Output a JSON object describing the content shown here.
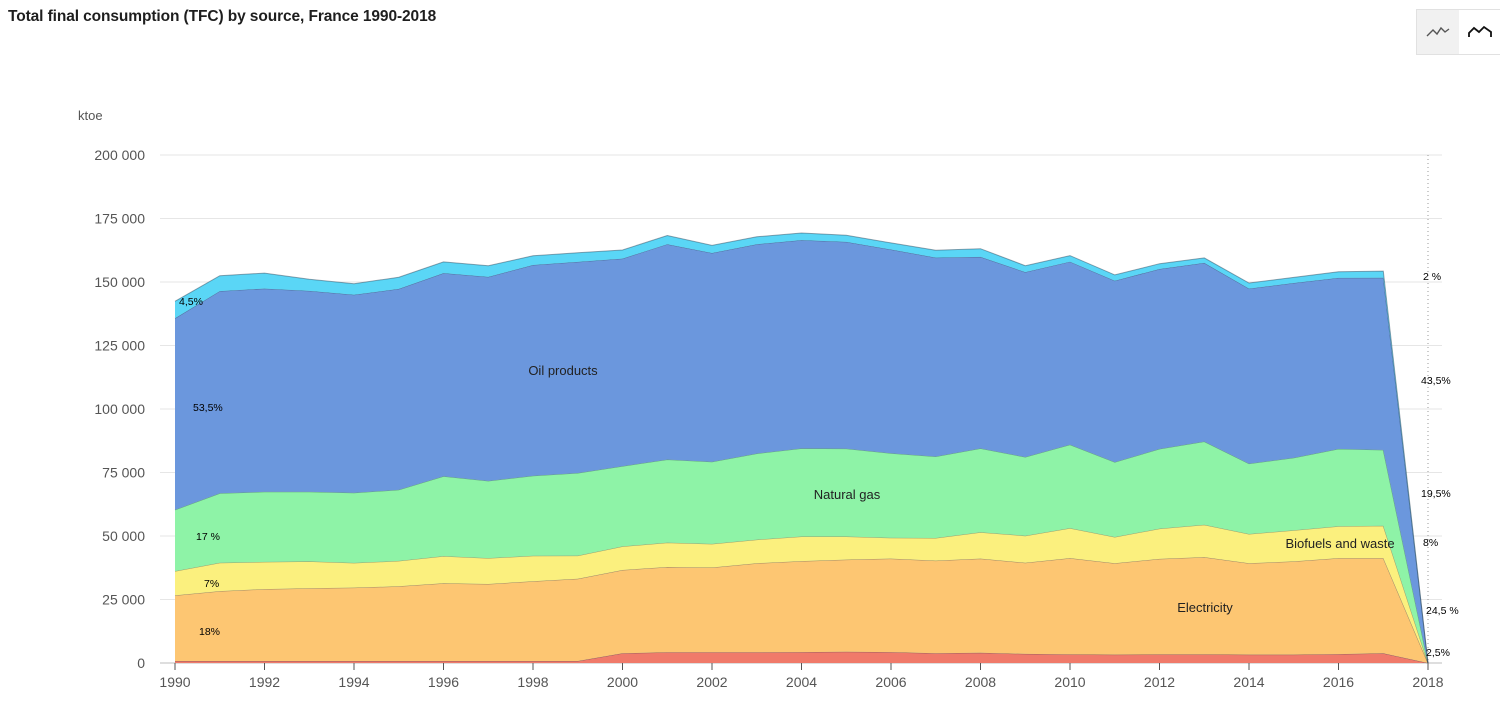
{
  "title": "Total final consumption (TFC) by source, France 1990-2018",
  "view_toggle": {
    "options": [
      {
        "name": "line-chart",
        "icon": "line-chart-icon",
        "selected": false
      },
      {
        "name": "area-chart",
        "icon": "area-chart-icon",
        "selected": true
      }
    ]
  },
  "chart_data": {
    "type": "area",
    "stacked": true,
    "title": "Total final consumption (TFC) by source, France 1990-2018",
    "ylabel": "ktoe",
    "xlabel": "",
    "ylim": [
      0,
      200000
    ],
    "yticks": [
      0,
      25000,
      50000,
      75000,
      100000,
      125000,
      150000,
      175000,
      200000
    ],
    "ytick_labels": [
      "0",
      "25 000",
      "50 000",
      "75 000",
      "100 000",
      "125 000",
      "150 000",
      "175 000",
      "200 000"
    ],
    "xticks": [
      1990,
      1992,
      1994,
      1996,
      1998,
      2000,
      2002,
      2004,
      2006,
      2008,
      2010,
      2012,
      2014,
      2016,
      2018
    ],
    "grid": "horizontal",
    "legend": "none (labels inside areas)",
    "x": [
      1990,
      1991,
      1992,
      1993,
      1994,
      1995,
      1996,
      1997,
      1998,
      1999,
      2000,
      2001,
      2002,
      2003,
      2004,
      2005,
      2006,
      2007,
      2008,
      2009,
      2010,
      2011,
      2012,
      2013,
      2014,
      2015,
      2016,
      2017,
      2018
    ],
    "series": [
      {
        "name": "",
        "color": "#f07a6a",
        "values": [
          800,
          800,
          800,
          800,
          800,
          800,
          800,
          800,
          800,
          800,
          3800,
          4200,
          4200,
          4200,
          4300,
          4400,
          4300,
          3800,
          4000,
          3600,
          3400,
          3300,
          3400,
          3400,
          3300,
          3300,
          3500,
          3800,
          0
        ]
      },
      {
        "name": "Electricity",
        "color": "#fdc672",
        "values": [
          25800,
          27500,
          28300,
          28600,
          28900,
          29400,
          30600,
          30300,
          31400,
          32400,
          32800,
          33600,
          33400,
          35100,
          35800,
          36300,
          36800,
          36500,
          37100,
          35900,
          37900,
          36000,
          37600,
          38300,
          36000,
          36700,
          37800,
          37500,
          0
        ]
      },
      {
        "name": "Biofuels and waste",
        "color": "#fbf07e",
        "values": [
          9600,
          11200,
          10700,
          10600,
          9700,
          10000,
          10700,
          10200,
          10000,
          9100,
          9300,
          9600,
          9300,
          9300,
          9700,
          9100,
          8200,
          8900,
          10400,
          10600,
          11800,
          10300,
          11900,
          12700,
          11500,
          12300,
          12500,
          12700,
          0
        ]
      },
      {
        "name": "Natural gas",
        "color": "#8ef3a7",
        "values": [
          24100,
          27300,
          27600,
          27400,
          27600,
          28000,
          31400,
          30400,
          31500,
          32500,
          31600,
          32700,
          32300,
          33900,
          34700,
          34600,
          33300,
          32100,
          33000,
          31000,
          32900,
          29500,
          31400,
          32800,
          27700,
          28500,
          30500,
          29900,
          0
        ]
      },
      {
        "name": "Oil products",
        "color": "#6b97dd",
        "values": [
          75400,
          79600,
          80000,
          79100,
          78000,
          79100,
          80000,
          80300,
          83000,
          83100,
          81700,
          84800,
          82200,
          82400,
          82000,
          81400,
          80200,
          78300,
          75400,
          72800,
          72000,
          71400,
          70800,
          70300,
          68900,
          68800,
          67300,
          67800,
          0
        ]
      },
      {
        "name": "",
        "color": "#5ad6f6",
        "values": [
          6700,
          6100,
          6100,
          4600,
          4300,
          4600,
          4400,
          4400,
          3600,
          3600,
          3400,
          3400,
          3000,
          2900,
          2800,
          2600,
          2600,
          2900,
          3200,
          2500,
          2400,
          2300,
          2100,
          2000,
          2200,
          2200,
          2400,
          2600,
          0
        ]
      }
    ],
    "area_labels": [
      "Oil products",
      "Natural gas",
      "Biofuels and waste",
      "Electricity"
    ],
    "annotations": {
      "left": [
        "4,5%",
        "53,5%",
        "17 %",
        "7%",
        "18%"
      ],
      "right": [
        "2 %",
        "43,5%",
        "19,5%",
        "8%",
        "24,5 %",
        "2,5%"
      ]
    }
  }
}
